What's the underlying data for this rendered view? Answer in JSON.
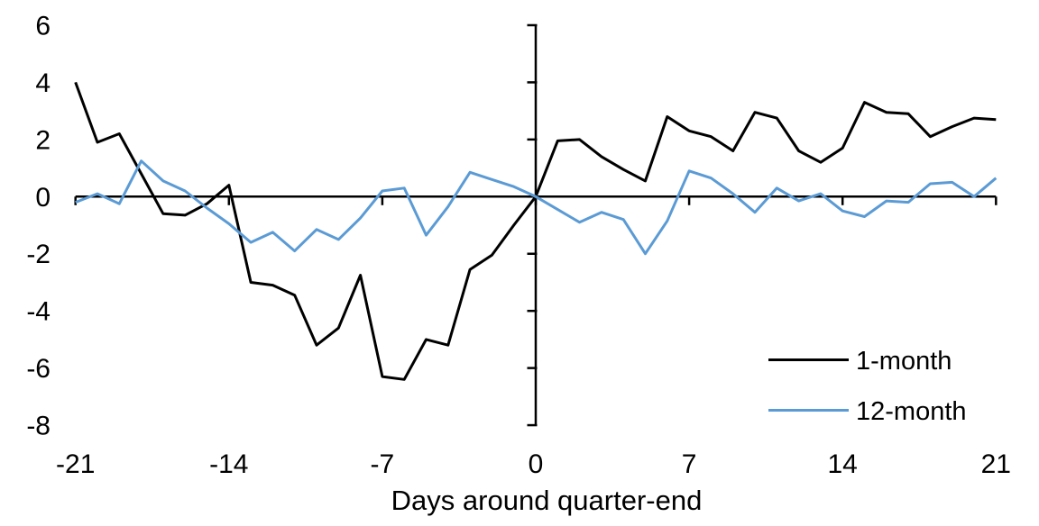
{
  "chart_data": {
    "type": "line",
    "title": "",
    "xlabel": "Days around quarter-end",
    "ylabel": "",
    "xlim": [
      -21,
      21
    ],
    "ylim": [
      -8,
      6
    ],
    "x_ticks": [
      -21,
      -14,
      -7,
      0,
      7,
      14,
      21
    ],
    "y_ticks": [
      6,
      4,
      2,
      0,
      -2,
      -4,
      -6,
      -8
    ],
    "grid": false,
    "axis_color": "#000000",
    "background_color": "#ffffff",
    "legend_position": "inside-bottom-right",
    "x": [
      -21,
      -20,
      -19,
      -18,
      -17,
      -16,
      -15,
      -14,
      -13,
      -12,
      -11,
      -10,
      -9,
      -8,
      -7,
      -6,
      -5,
      -4,
      -3,
      -2,
      -1,
      0,
      1,
      2,
      3,
      4,
      5,
      6,
      7,
      8,
      9,
      10,
      11,
      12,
      13,
      14,
      15,
      16,
      17,
      18,
      19,
      20,
      21
    ],
    "series": [
      {
        "name": "1-month",
        "color": "#000000",
        "values": [
          4.0,
          1.9,
          2.2,
          0.8,
          -0.6,
          -0.65,
          -0.25,
          0.4,
          -3.0,
          -3.1,
          -3.45,
          -5.2,
          -4.6,
          -2.75,
          -6.3,
          -6.4,
          -5.0,
          -5.2,
          -2.55,
          -2.05,
          -1.0,
          0.0,
          1.95,
          2.0,
          1.4,
          0.95,
          0.55,
          2.8,
          2.3,
          2.1,
          1.6,
          2.95,
          2.75,
          1.6,
          1.2,
          1.7,
          3.3,
          2.95,
          2.9,
          2.1,
          2.45,
          2.75,
          2.7
        ]
      },
      {
        "name": "12-month",
        "color": "#5B9BD5",
        "values": [
          -0.2,
          0.1,
          -0.25,
          1.25,
          0.55,
          0.2,
          -0.4,
          -0.95,
          -1.6,
          -1.25,
          -1.9,
          -1.15,
          -1.5,
          -0.75,
          0.2,
          0.3,
          -1.35,
          -0.35,
          0.85,
          0.6,
          0.35,
          0.0,
          -0.45,
          -0.9,
          -0.55,
          -0.8,
          -2.0,
          -0.85,
          0.9,
          0.65,
          0.1,
          -0.55,
          0.3,
          -0.15,
          0.1,
          -0.5,
          -0.7,
          -0.15,
          -0.2,
          0.45,
          0.5,
          0.0,
          0.65
        ]
      }
    ]
  }
}
